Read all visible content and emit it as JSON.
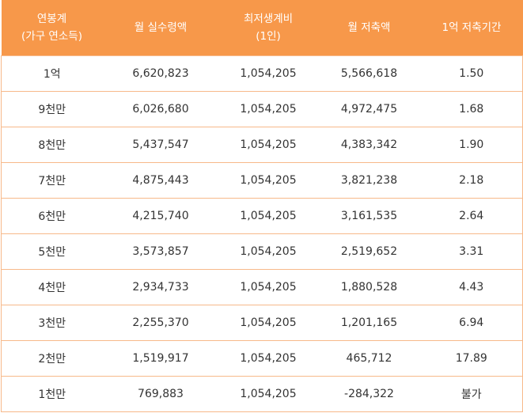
{
  "header": {
    "col1_line1": "연봉계",
    "col1_line2": "(가구 연소득)",
    "col2": "월 실수령액",
    "col3_line1": "최저생계비",
    "col3_line2": "(1인)",
    "col4": "월 저축액",
    "col5": "1억 저축기간"
  },
  "rows": [
    {
      "salary": "1억",
      "monthly_net": "6,620,823",
      "min_living": "1,054,205",
      "monthly_saving": "5,566,618",
      "period": "1.50"
    },
    {
      "salary": "9천만",
      "monthly_net": "6,026,680",
      "min_living": "1,054,205",
      "monthly_saving": "4,972,475",
      "period": "1.68"
    },
    {
      "salary": "8천만",
      "monthly_net": "5,437,547",
      "min_living": "1,054,205",
      "monthly_saving": "4,383,342",
      "period": "1.90"
    },
    {
      "salary": "7천만",
      "monthly_net": "4,875,443",
      "min_living": "1,054,205",
      "monthly_saving": "3,821,238",
      "period": "2.18"
    },
    {
      "salary": "6천만",
      "monthly_net": "4,215,740",
      "min_living": "1,054,205",
      "monthly_saving": "3,161,535",
      "period": "2.64"
    },
    {
      "salary": "5천만",
      "monthly_net": "3,573,857",
      "min_living": "1,054,205",
      "monthly_saving": "2,519,652",
      "period": "3.31"
    },
    {
      "salary": "4천만",
      "monthly_net": "2,934,733",
      "min_living": "1,054,205",
      "monthly_saving": "1,880,528",
      "period": "4.43"
    },
    {
      "salary": "3천만",
      "monthly_net": "2,255,370",
      "min_living": "1,054,205",
      "monthly_saving": "1,201,165",
      "period": "6.94"
    },
    {
      "salary": "2천만",
      "monthly_net": "1,519,917",
      "min_living": "1,054,205",
      "monthly_saving": "465,712",
      "period": "17.89"
    },
    {
      "salary": "1천만",
      "monthly_net": "769,883",
      "min_living": "1,054,205",
      "monthly_saving": "-284,322",
      "period": "불가"
    }
  ],
  "colors": {
    "header_bg": "#f7984a",
    "border": "#f7b98a",
    "text": "#333333"
  }
}
